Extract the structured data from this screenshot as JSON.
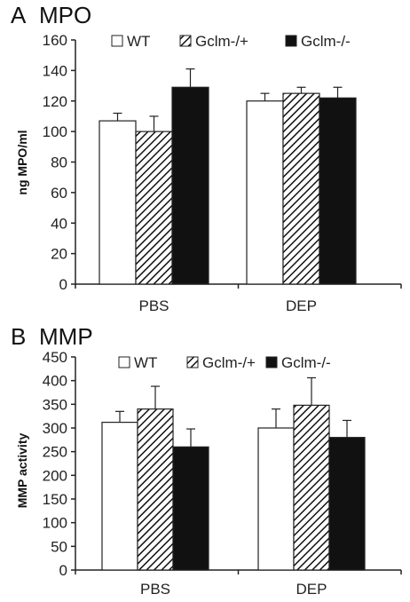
{
  "chart_data": [
    {
      "type": "bar",
      "panel": "A",
      "title": "MPO",
      "ylabel": "ng MPO/ml",
      "categories": [
        "PBS",
        "DEP"
      ],
      "ylim": [
        0,
        160
      ],
      "yticks": [
        0,
        20,
        40,
        60,
        80,
        100,
        120,
        140,
        160
      ],
      "legend_position": "top",
      "series": [
        {
          "name": "WT",
          "values": [
            107,
            120
          ],
          "errors": [
            5,
            5
          ]
        },
        {
          "name": "Gclm-/+",
          "values": [
            100,
            125
          ],
          "errors": [
            10,
            4
          ]
        },
        {
          "name": "Gclm-/-",
          "values": [
            129,
            122
          ],
          "errors": [
            12,
            7
          ]
        }
      ]
    },
    {
      "type": "bar",
      "panel": "B",
      "title": "MMP",
      "ylabel": "MMP activity",
      "categories": [
        "PBS",
        "DEP"
      ],
      "ylim": [
        0,
        450
      ],
      "yticks": [
        0,
        50,
        100,
        150,
        200,
        250,
        300,
        350,
        400,
        450
      ],
      "legend_position": "top",
      "series": [
        {
          "name": "WT",
          "values": [
            312,
            300
          ],
          "errors": [
            23,
            40
          ]
        },
        {
          "name": "Gclm-/+",
          "values": [
            340,
            348
          ],
          "errors": [
            48,
            58
          ]
        },
        {
          "name": "Gclm-/-",
          "values": [
            260,
            280
          ],
          "errors": [
            38,
            36
          ]
        }
      ]
    }
  ],
  "colors": {
    "wt_fill": "#ffffff",
    "het_fill": "hatched",
    "ko_fill": "#111111",
    "axis": "#222222"
  }
}
